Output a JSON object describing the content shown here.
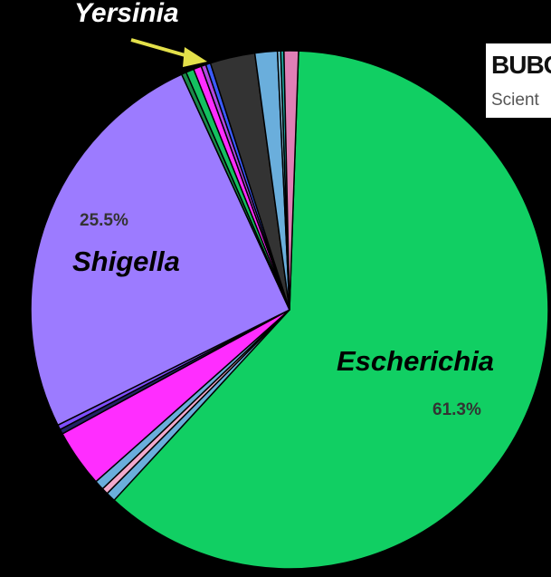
{
  "chart_data": {
    "type": "pie",
    "title": "",
    "start_angle_deg": 2,
    "slices": [
      {
        "label": "Escherichia",
        "value": 61.3,
        "color": "#11cf63",
        "display_pct": "61.3%"
      },
      {
        "label": "",
        "value": 0.6,
        "color": "#6aaedc"
      },
      {
        "label": "",
        "value": 0.4,
        "color": "#f2a9cc"
      },
      {
        "label": "",
        "value": 0.6,
        "color": "#6aaedc"
      },
      {
        "label": "",
        "value": 3.6,
        "color": "#ff2dff"
      },
      {
        "label": "",
        "value": 0.3,
        "color": "#222266"
      },
      {
        "label": "",
        "value": 0.3,
        "color": "#7f4fff"
      },
      {
        "label": "Shigella",
        "value": 25.5,
        "color": "#9c7bff",
        "display_pct": "25.5%"
      },
      {
        "label": "",
        "value": 0.3,
        "color": "#1a8a4a"
      },
      {
        "label": "",
        "value": 0.5,
        "color": "#14c060"
      },
      {
        "label": "",
        "value": 0.5,
        "color": "#ff2dff"
      },
      {
        "label": "",
        "value": 0.3,
        "color": "#b048e0"
      },
      {
        "label": "",
        "value": 0.3,
        "color": "#3b5bff"
      },
      {
        "label": "",
        "value": 2.8,
        "color": "#333333"
      },
      {
        "label": "",
        "value": 1.4,
        "color": "#6aaedc"
      },
      {
        "label": "",
        "value": 0.2,
        "color": "#88c8e8"
      },
      {
        "label": "",
        "value": 0.2,
        "color": "#1ea7a0"
      },
      {
        "label": "",
        "value": 0.9,
        "color": "#e07fb5"
      }
    ],
    "annotations": [
      {
        "text": "Yersinia",
        "arrow_color": "#e3e04a"
      }
    ]
  },
  "overlay": {
    "title": "BUBO",
    "subtitle": "Scient"
  },
  "colors": {
    "background": "#000000",
    "slice_outline": "#000000",
    "arrow": "#e3e04a"
  }
}
